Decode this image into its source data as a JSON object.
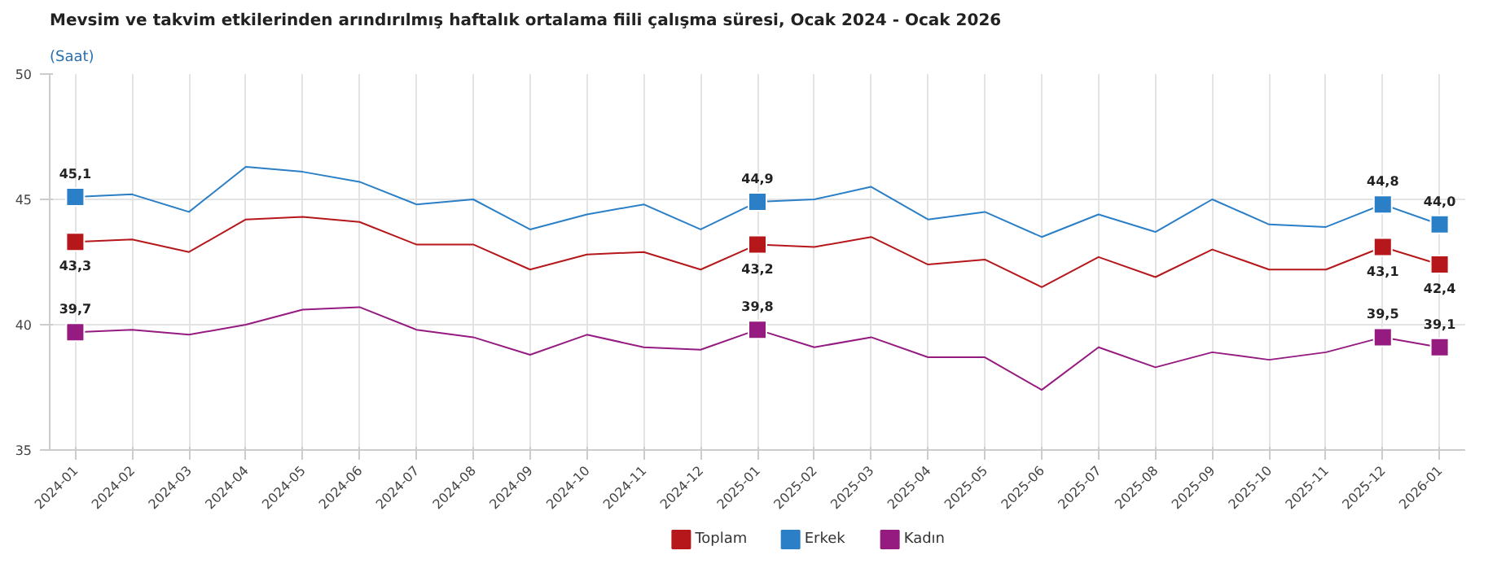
{
  "chart_data": {
    "type": "line",
    "title": "Mevsim ve takvim etkilerinden arındırılmış haftalık ortalama fiili çalışma süresi, Ocak 2024 - Ocak 2026",
    "subtitle": "(Saat)",
    "categories": [
      "2024-01",
      "2024-02",
      "2024-03",
      "2024-04",
      "2024-05",
      "2024-06",
      "2024-07",
      "2024-08",
      "2024-09",
      "2024-10",
      "2024-11",
      "2024-12",
      "2025-01",
      "2025-02",
      "2025-03",
      "2025-04",
      "2025-05",
      "2025-06",
      "2025-07",
      "2025-08",
      "2025-09",
      "2025-10",
      "2025-11",
      "2025-12",
      "2026-01"
    ],
    "series": [
      {
        "name": "Toplam",
        "color": "#b5171b",
        "values": [
          43.3,
          43.4,
          42.9,
          44.2,
          44.3,
          44.1,
          43.2,
          43.2,
          42.2,
          42.8,
          42.9,
          42.2,
          43.2,
          43.1,
          43.5,
          42.4,
          42.6,
          41.5,
          42.7,
          41.9,
          43.0,
          42.2,
          42.2,
          43.1,
          42.4
        ],
        "value_labels": [
          "43,3",
          null,
          null,
          null,
          null,
          null,
          null,
          null,
          null,
          null,
          null,
          null,
          "43,2",
          null,
          null,
          null,
          null,
          null,
          null,
          null,
          null,
          null,
          null,
          "43,1",
          "42,4"
        ]
      },
      {
        "name": "Erkek",
        "color": "#2a7fc6",
        "values": [
          45.1,
          45.2,
          44.5,
          46.3,
          46.1,
          45.7,
          44.8,
          45.0,
          43.8,
          44.4,
          44.8,
          43.8,
          44.9,
          45.0,
          45.5,
          44.2,
          44.5,
          43.5,
          44.4,
          43.7,
          45.0,
          44.0,
          43.9,
          44.8,
          44.0
        ],
        "value_labels": [
          "45,1",
          null,
          null,
          null,
          null,
          null,
          null,
          null,
          null,
          null,
          null,
          null,
          "44,9",
          null,
          null,
          null,
          null,
          null,
          null,
          null,
          null,
          null,
          null,
          "44,8",
          "44,0"
        ]
      },
      {
        "name": "Kadın",
        "color": "#951b81",
        "values": [
          39.7,
          39.8,
          39.6,
          40.0,
          40.6,
          40.7,
          39.8,
          39.5,
          38.8,
          39.6,
          39.1,
          39.0,
          39.8,
          39.1,
          39.5,
          38.7,
          38.7,
          37.4,
          39.1,
          38.3,
          38.9,
          38.6,
          38.9,
          39.5,
          39.1
        ],
        "value_labels": [
          "39,7",
          null,
          null,
          null,
          null,
          null,
          null,
          null,
          null,
          null,
          null,
          null,
          "39,8",
          null,
          null,
          null,
          null,
          null,
          null,
          null,
          null,
          null,
          null,
          "39,5",
          "39,1"
        ]
      }
    ],
    "ylim": [
      35,
      50
    ],
    "yticks": [
      35,
      40,
      45,
      50
    ],
    "grid": true,
    "legend": "bottom",
    "line_style": "solid"
  }
}
